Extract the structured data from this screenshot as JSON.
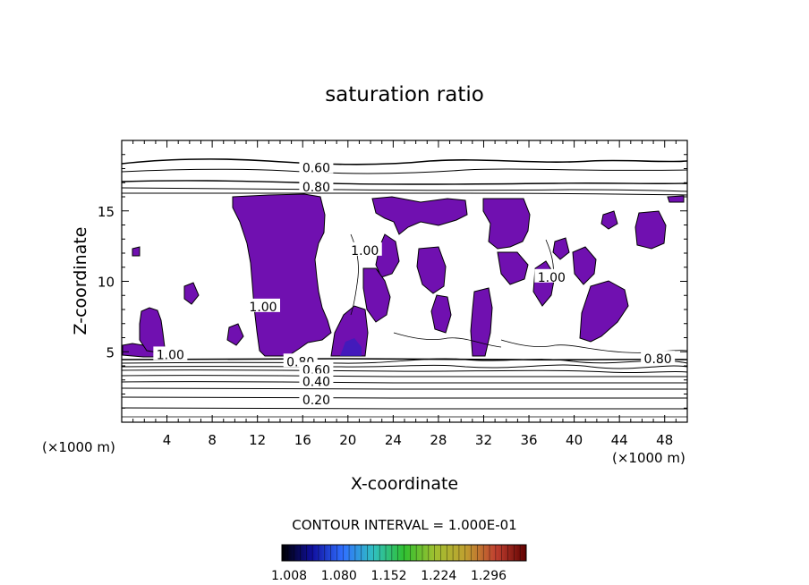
{
  "chart_data": {
    "type": "contour",
    "title": "saturation ratio",
    "xlabel": "X-coordinate",
    "ylabel": "Z-coordinate",
    "x_unit_label": "(×1000 m)",
    "z_unit_label": "(×1000 m)",
    "xlim": [
      0,
      50
    ],
    "ylim": [
      0,
      20
    ],
    "x_ticks": [
      4,
      8,
      12,
      16,
      20,
      24,
      28,
      32,
      36,
      40,
      44,
      48
    ],
    "y_ticks": [
      5,
      10,
      15
    ],
    "contour_interval_label": "CONTOUR INTERVAL = 1.000E-01",
    "fill_color": "#7010b0",
    "background_color": "#ffffff",
    "colorbar": {
      "tick_labels": [
        "1.008",
        "1.080",
        "1.152",
        "1.224",
        "1.296"
      ],
      "colors": [
        "#000000",
        "#1010a0",
        "#3070ff",
        "#30c0c0",
        "#30c030",
        "#a0c030",
        "#c0a030",
        "#c04030",
        "#600000"
      ]
    },
    "contour_labels": [
      {
        "text": "0.60",
        "x": 17.2,
        "z": 18.05
      },
      {
        "text": "0.80",
        "x": 17.2,
        "z": 16.7
      },
      {
        "text": "0.80",
        "x": 15.8,
        "z": 4.3
      },
      {
        "text": "0.60",
        "x": 17.2,
        "z": 3.7
      },
      {
        "text": "0.40",
        "x": 17.2,
        "z": 2.9
      },
      {
        "text": "0.20",
        "x": 17.2,
        "z": 1.6
      },
      {
        "text": "0.80",
        "x": 47.4,
        "z": 4.5
      },
      {
        "text": "1.00",
        "x": 4.3,
        "z": 4.8
      },
      {
        "text": "1.00",
        "x": 12.5,
        "z": 8.2
      },
      {
        "text": "1.00",
        "x": 21.5,
        "z": 12.2
      },
      {
        "text": "1.00",
        "x": 38.0,
        "z": 10.3
      }
    ]
  }
}
